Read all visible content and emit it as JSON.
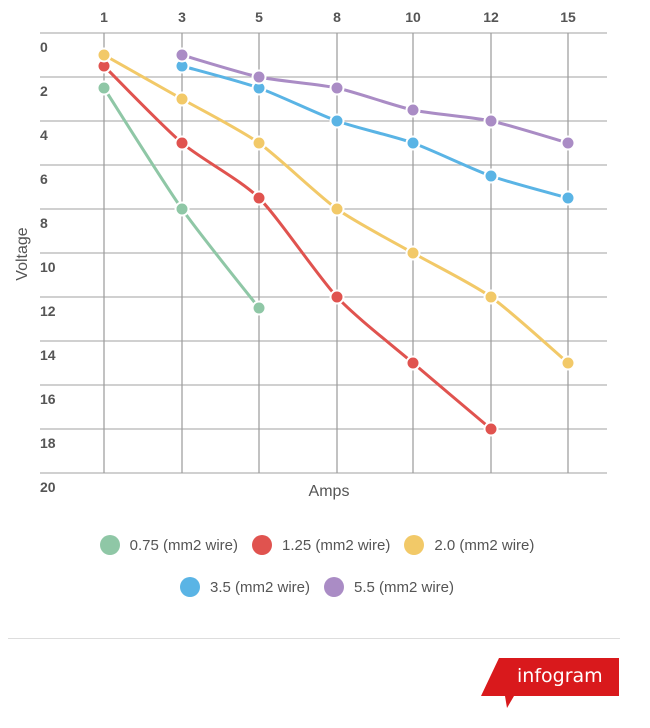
{
  "chart_data": {
    "type": "line",
    "title": "",
    "xlabel": "Amps",
    "ylabel": "Voltage",
    "x_axis_position": "top",
    "y_axis_inverted": true,
    "categories": [
      "1",
      "3",
      "5",
      "8",
      "10",
      "12",
      "15"
    ],
    "y_ticks": [
      "0",
      "2",
      "4",
      "6",
      "8",
      "10",
      "12",
      "14",
      "16",
      "18",
      "20"
    ],
    "ylim": [
      0,
      20
    ],
    "grid": true,
    "legend_position": "bottom",
    "series": [
      {
        "name": "0.75 (mm2 wire)",
        "color": "#8fc7a6",
        "values": [
          2.5,
          8,
          12.5,
          null,
          null,
          null,
          null
        ]
      },
      {
        "name": "1.25 (mm2 wire)",
        "color": "#e0534f",
        "values": [
          1.5,
          5,
          7.5,
          12,
          15,
          18,
          null
        ]
      },
      {
        "name": "2.0 (mm2 wire)",
        "color": "#f2c968",
        "values": [
          1,
          3,
          5,
          8,
          10,
          12,
          15
        ]
      },
      {
        "name": "3.5 (mm2 wire)",
        "color": "#5ab4e5",
        "values": [
          null,
          1.5,
          2.5,
          4,
          5,
          6.5,
          7.5
        ]
      },
      {
        "name": "5.5 (mm2 wire)",
        "color": "#aa8cc5",
        "values": [
          null,
          1,
          2,
          2.5,
          3.5,
          4,
          5
        ]
      }
    ]
  },
  "legend": {
    "row1": [
      {
        "label": "0.75 (mm2 wire)",
        "color": "#8fc7a6"
      },
      {
        "label": "1.25 (mm2 wire)",
        "color": "#e0534f"
      },
      {
        "label": "2.0 (mm2 wire)",
        "color": "#f2c968"
      }
    ],
    "row2": [
      {
        "label": "3.5 (mm2 wire)",
        "color": "#5ab4e5"
      },
      {
        "label": "5.5 (mm2 wire)",
        "color": "#aa8cc5"
      }
    ]
  },
  "brand": {
    "label": "infogram",
    "color": "#d9191c"
  }
}
